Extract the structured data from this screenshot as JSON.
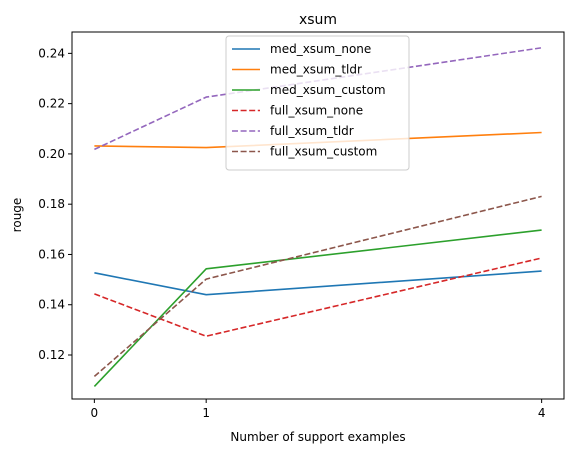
{
  "chart_data": {
    "type": "line",
    "title": "xsum",
    "xlabel": "Number of support examples",
    "ylabel": "rouge",
    "x": [
      0,
      1,
      4
    ],
    "xticks": [
      "0",
      "1",
      "4"
    ],
    "xlim": [
      -0.2,
      4.2
    ],
    "ylim": [
      0.1025,
      0.2485
    ],
    "yticks": [
      "0.12",
      "0.14",
      "0.16",
      "0.18",
      "0.20",
      "0.22",
      "0.24"
    ],
    "grid": false,
    "legend_position": "top-center",
    "series": [
      {
        "name": "med_xsum_none",
        "values": [
          0.1527,
          0.144,
          0.1534
        ],
        "color": "#1f77b4",
        "dash": "solid"
      },
      {
        "name": "med_xsum_tldr",
        "values": [
          0.2032,
          0.2025,
          0.2085
        ],
        "color": "#ff7f0e",
        "dash": "solid"
      },
      {
        "name": "med_xsum_custom",
        "values": [
          0.1075,
          0.1543,
          0.1697
        ],
        "color": "#2ca02c",
        "dash": "solid"
      },
      {
        "name": "full_xsum_none",
        "values": [
          0.1443,
          0.1275,
          0.1586
        ],
        "color": "#d62728",
        "dash": "dashed"
      },
      {
        "name": "full_xsum_tldr",
        "values": [
          0.2018,
          0.2226,
          0.2422
        ],
        "color": "#9467bd",
        "dash": "dashed"
      },
      {
        "name": "full_xsum_custom",
        "values": [
          0.1115,
          0.1502,
          0.1831
        ],
        "color": "#8c564b",
        "dash": "dashed"
      }
    ]
  }
}
